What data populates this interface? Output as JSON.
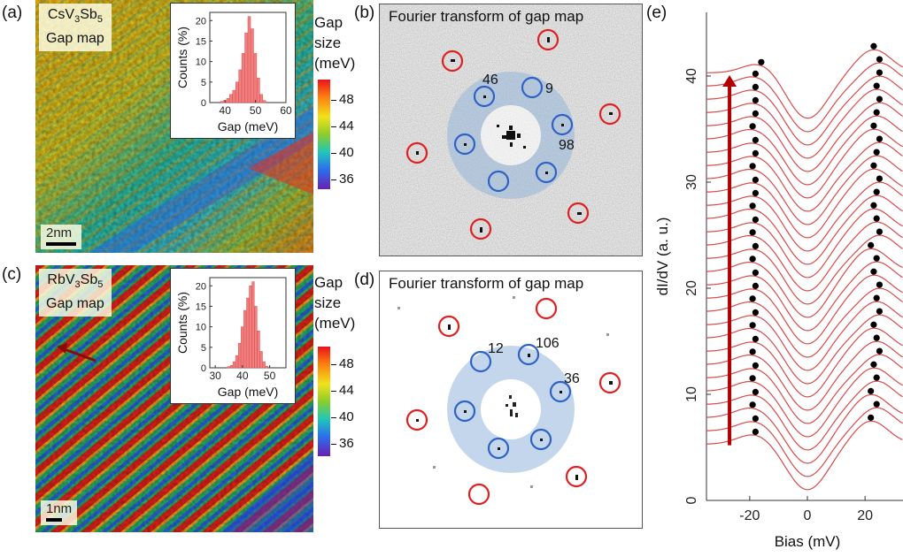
{
  "panel_a": {
    "label": "(a)",
    "title_line1": "CsV",
    "title_sub1": "3",
    "title_mid": "Sb",
    "title_sub2": "5",
    "title_line2": "Gap map",
    "scalebar": "2nm"
  },
  "panel_b": {
    "label": "(b)",
    "title": "Fourier transform of gap map",
    "peaks": [
      "46",
      "9",
      "98"
    ]
  },
  "panel_c": {
    "label": "(c)",
    "title_line1": "RbV",
    "title_sub1": "3",
    "title_mid": "Sb",
    "title_sub2": "5",
    "title_line2": "Gap map",
    "scalebar": "1nm"
  },
  "panel_d": {
    "label": "(d)",
    "title": "Fourier transform of gap map",
    "peaks": [
      "12",
      "106",
      "36"
    ]
  },
  "panel_e": {
    "label": "(e)"
  },
  "colorbar": {
    "title1": "Gap",
    "title2": "size",
    "title3": "(meV)",
    "ticks": [
      "48",
      "44",
      "40",
      "36"
    ],
    "colors": [
      "#e8121a",
      "#ff7f0f",
      "#f2e21a",
      "#8ccd2a",
      "#20c8b8",
      "#2a6ff0",
      "#6a1fb0"
    ]
  },
  "chart_data": [
    {
      "type": "bar",
      "panel": "(a) inset",
      "xlabel": "Gap (meV)",
      "ylabel": "Counts (%)",
      "xlim": [
        35,
        60
      ],
      "ylim": [
        0,
        22
      ],
      "xticks": [
        "40",
        "50",
        "60"
      ],
      "yticks": [
        "0",
        "5",
        "10",
        "15",
        "20"
      ],
      "bin_width": 1,
      "bin_centers": [
        39,
        40,
        41,
        42,
        43,
        44,
        45,
        46,
        47,
        48,
        49,
        50,
        51,
        52,
        53
      ],
      "values": [
        0.3,
        0.5,
        1,
        2,
        3,
        5,
        8,
        12,
        17,
        21,
        18,
        12,
        6,
        2,
        0.5
      ]
    },
    {
      "type": "bar",
      "panel": "(c) inset",
      "xlabel": "Gap (meV)",
      "ylabel": "Counts (%)",
      "xlim": [
        28,
        56
      ],
      "ylim": [
        0,
        22
      ],
      "xticks": [
        "30",
        "40",
        "50"
      ],
      "yticks": [
        "0",
        "5",
        "10",
        "15",
        "20"
      ],
      "bin_width": 1,
      "bin_centers": [
        35,
        36,
        37,
        38,
        39,
        40,
        41,
        42,
        43,
        44,
        45,
        46,
        47,
        48,
        49
      ],
      "values": [
        0.3,
        0.6,
        1.5,
        3,
        6,
        10,
        14,
        17,
        20,
        21,
        15,
        9,
        4,
        1.5,
        0.4
      ]
    },
    {
      "type": "line",
      "panel": "(e)",
      "xlabel": "Bias (mV)",
      "ylabel": "dI/dV (a. u.)",
      "xlim": [
        -35,
        35
      ],
      "ylim": [
        0,
        46
      ],
      "xticks": [
        "-20",
        "0",
        "20"
      ],
      "yticks": [
        "0",
        "10",
        "20",
        "30",
        "40"
      ],
      "n_curves": 29,
      "curve_offset": 1.25,
      "base_level": 5.3,
      "dip_depth": 4.3,
      "peak_height": 2.2,
      "left_peak_bias": [
        -18,
        -18,
        -19,
        -18,
        -19,
        -18,
        -19,
        -18,
        -19,
        -18,
        -19,
        -18,
        -18,
        -19,
        -18,
        -19,
        -18,
        -19,
        -18,
        -18,
        -19,
        -18,
        -18,
        -19,
        -18,
        -18,
        -18,
        -18,
        -16
      ],
      "right_peak_bias": [
        22,
        24,
        22,
        24,
        23,
        25,
        24,
        23,
        25,
        24,
        25,
        23,
        24,
        22,
        25,
        24,
        23,
        24,
        25,
        23,
        24,
        25,
        23,
        24,
        25,
        24,
        25,
        25,
        23
      ]
    }
  ]
}
